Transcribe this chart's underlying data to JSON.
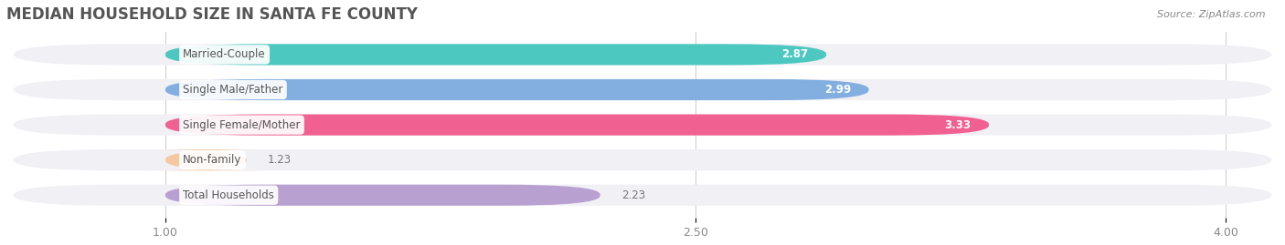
{
  "title": "MEDIAN HOUSEHOLD SIZE IN SANTA FE COUNTY",
  "source": "Source: ZipAtlas.com",
  "categories": [
    "Married-Couple",
    "Single Male/Father",
    "Single Female/Mother",
    "Non-family",
    "Total Households"
  ],
  "values": [
    2.87,
    2.99,
    3.33,
    1.23,
    2.23
  ],
  "bar_colors": [
    "#4dc8c0",
    "#82aee0",
    "#f06090",
    "#f5c8a0",
    "#b8a0d0"
  ],
  "label_text_color": "#555555",
  "xlim_min": 0.55,
  "xlim_max": 4.15,
  "data_min": 1.0,
  "data_max": 4.0,
  "xticks": [
    1.0,
    2.5,
    4.0
  ],
  "title_fontsize": 12,
  "title_color": "#555555",
  "background_color": "#ffffff",
  "bar_height": 0.6,
  "row_bg_color": "#f0f0f5",
  "value_label_inside": [
    true,
    true,
    true,
    false,
    false
  ],
  "source_text": "Source: ZipAtlas.com"
}
